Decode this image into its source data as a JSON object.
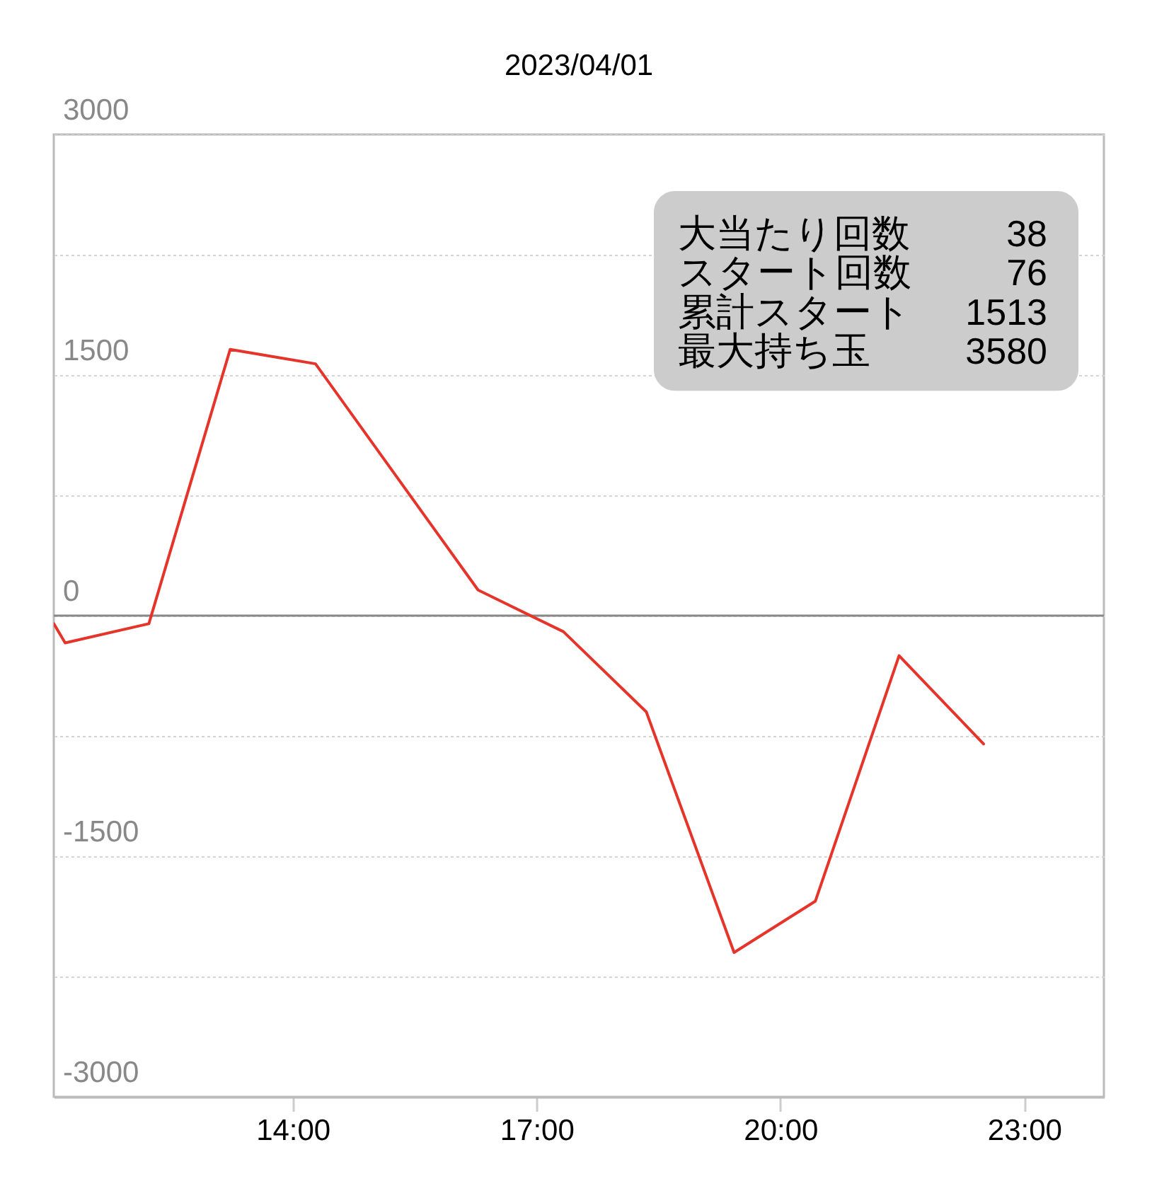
{
  "chart_data": {
    "type": "line",
    "title": "2023/04/01",
    "x": [
      11.06,
      11.2,
      12.23,
      13.23,
      14.28,
      16.28,
      17.33,
      18.35,
      19.43,
      20.43,
      21.46,
      22.5
    ],
    "series": [
      {
        "color": "#e5352b",
        "values": [
          -50,
          -170,
          -50,
          1660,
          1570,
          160,
          -100,
          -600,
          -2100,
          -1780,
          -250,
          -800
        ]
      }
    ],
    "xlim": [
      11.06,
      23.98
    ],
    "xticks": [
      {
        "value": 14,
        "label": "14:00"
      },
      {
        "value": 17,
        "label": "17:00"
      },
      {
        "value": 20,
        "label": "20:00"
      },
      {
        "value": 23,
        "label": "23:00"
      }
    ],
    "ylim": [
      -3000,
      3000
    ],
    "yticks": [
      3000,
      {
        "value": 2250,
        "label": null
      },
      1500,
      {
        "value": 750,
        "label": null
      },
      0,
      {
        "value": -750,
        "label": null
      },
      -1500,
      {
        "value": -2250,
        "label": null
      },
      -3000
    ],
    "ref_lines": [
      {
        "axis": "y",
        "value": 0,
        "color": "#888888"
      }
    ],
    "annotations": [
      "大当たり回数",
      "38",
      "スタート回数",
      "76",
      "累計スタート",
      "1513",
      "最大持ち玉",
      "3580"
    ],
    "grid": "y",
    "marker": "none",
    "line_style": "solid"
  }
}
